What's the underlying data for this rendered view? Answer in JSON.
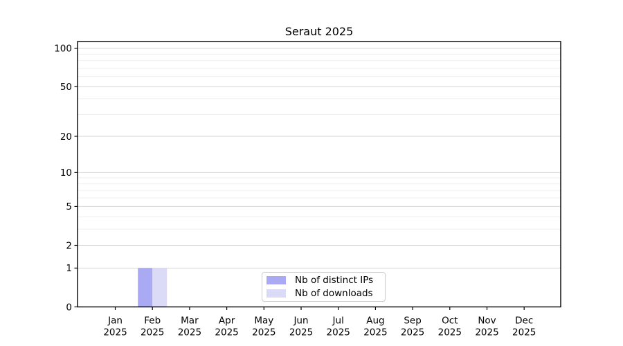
{
  "chart_data": {
    "type": "bar",
    "title": "Seraut 2025",
    "xlabel": "",
    "ylabel": "",
    "grid": true,
    "x_ticks": [
      {
        "month": "Jan",
        "year": "2025"
      },
      {
        "month": "Feb",
        "year": "2025"
      },
      {
        "month": "Mar",
        "year": "2025"
      },
      {
        "month": "Apr",
        "year": "2025"
      },
      {
        "month": "May",
        "year": "2025"
      },
      {
        "month": "Jun",
        "year": "2025"
      },
      {
        "month": "Jul",
        "year": "2025"
      },
      {
        "month": "Aug",
        "year": "2025"
      },
      {
        "month": "Sep",
        "year": "2025"
      },
      {
        "month": "Oct",
        "year": "2025"
      },
      {
        "month": "Nov",
        "year": "2025"
      },
      {
        "month": "Dec",
        "year": "2025"
      }
    ],
    "series": [
      {
        "name": "Nb of distinct IPs",
        "color": "#a9a9f4",
        "values": [
          0,
          1,
          0,
          0,
          0,
          0,
          0,
          0,
          0,
          0,
          0,
          0
        ]
      },
      {
        "name": "Nb of downloads",
        "color": "#dbdbf8",
        "values": [
          0,
          1,
          0,
          0,
          0,
          0,
          0,
          0,
          0,
          0,
          0,
          0
        ]
      }
    ],
    "y_axis": {
      "scale": "log1p",
      "major_ticks": [
        0,
        1,
        2,
        5,
        10,
        20,
        50,
        100
      ],
      "minor_ticks": [
        3,
        4,
        6,
        7,
        8,
        9,
        30,
        40,
        60,
        70,
        80,
        90
      ],
      "ylim": [
        0,
        113
      ]
    },
    "legend": {
      "position": "lower-center",
      "entries": [
        "Nb of distinct IPs",
        "Nb of downloads"
      ]
    },
    "colors": {
      "grid_major": "#d4d4d4",
      "grid_minor": "#efefef",
      "spine": "#000000",
      "tick_text": "#000000",
      "background": "#ffffff"
    }
  }
}
